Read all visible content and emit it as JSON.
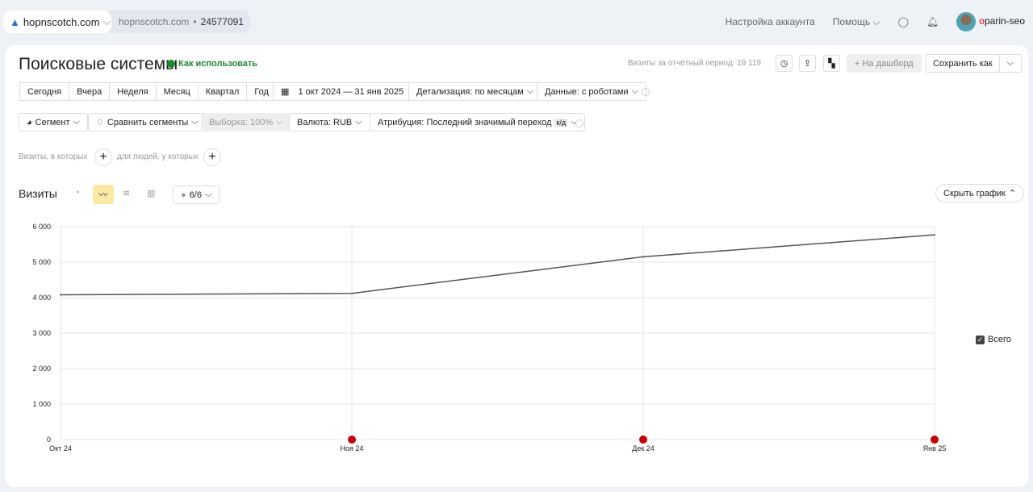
{
  "topbar": {
    "site": "hopnscotch.com",
    "counter_site": "hopnscotch.com",
    "counter_id": "24577091",
    "account_settings": "Настройка аккаунта",
    "help": "Помощь",
    "user_first": "o",
    "user_rest": "parin-seo"
  },
  "header": {
    "title": "Поисковые системы",
    "howto": "Как использовать",
    "visits_period": "Визиты за отчётный период: 19 119",
    "to_dashboard": "+ На дашборд",
    "save_as": "Сохранить как"
  },
  "periods": [
    "Сегодня",
    "Вчера",
    "Неделя",
    "Месяц",
    "Квартал",
    "Год"
  ],
  "date_range": "1 окт 2024 — 31 янв 2025",
  "detail": "Детализация: по месяцам",
  "data_mode": "Данные: с роботами",
  "filters": {
    "segment": "Сегмент",
    "compare": "Сравнить сегменты",
    "sample": "Выборка: 100%",
    "currency": "Валюта: RUB",
    "attribution": "Атрибуция: Последний значимый переход",
    "attribution_badge": "к/д"
  },
  "conditions": {
    "visits": "Визиты, в которых",
    "people": "для людей, у которых"
  },
  "chart_header": {
    "metric": "Визиты",
    "series_count": "6/6",
    "hide": "Скрыть график"
  },
  "colors": {
    "line": "#555555",
    "accent": "#fce9a4",
    "marker": "#cc0000"
  },
  "chart_data": {
    "type": "line",
    "categories": [
      "Окт 24",
      "Ноя 24",
      "Дек 24",
      "Янв 25"
    ],
    "series": [
      {
        "name": "Всего",
        "values": [
          4080,
          4120,
          5150,
          5769
        ]
      }
    ],
    "yticks": [
      "0",
      "1 000",
      "2 000",
      "3 000",
      "4 000",
      "5 000",
      "6 000"
    ],
    "ylim": [
      0,
      6000
    ],
    "grid": true,
    "legend": "right",
    "annotation_markers": [
      "Ноя 24",
      "Дек 24",
      "Янв 25"
    ]
  }
}
